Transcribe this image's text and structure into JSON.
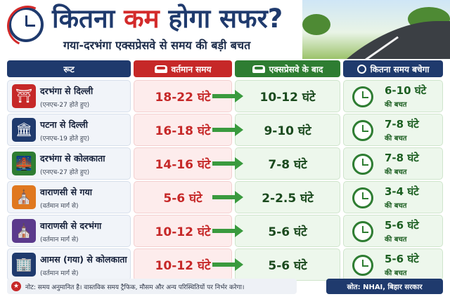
{
  "header": {
    "title_part1": "कितना ",
    "title_highlight": "कम",
    "title_part2": " होगा सफर?",
    "subtitle": "गया-दरभंगा एक्सप्रेसवे से समय की बड़ी बचत"
  },
  "columns": {
    "route": "रूट",
    "current": "वर्तमान समय",
    "expressway": "एक्सप्रेसवे के बाद",
    "saving": "कितना समय बचेगा"
  },
  "rows": [
    {
      "route": "दरभंगा से दिल्ली",
      "via": "(एनएच-27 होते हुए)",
      "icon": "india-gate-icon",
      "icon_color": "#c62828",
      "current": "18-22 घंटे",
      "expressway": "10-12 घंटे",
      "saving": "6-10 घंटे",
      "saving_label": "की बचत"
    },
    {
      "route": "पटना से दिल्ली",
      "via": "(एनएच-19 होते हुए)",
      "icon": "parliament-icon",
      "icon_color": "#1f3a6d",
      "current": "16-18 घंटे",
      "expressway": "9-10 घंटे",
      "saving": "7-8 घंटे",
      "saving_label": "की बचत"
    },
    {
      "route": "दरभंगा से कोलकाता",
      "via": "(एनएच-27 होते हुए)",
      "icon": "bridge-icon",
      "icon_color": "#2e7d32",
      "current": "14-16 घंटे",
      "expressway": "7-8 घंटे",
      "saving": "7-8 घंटे",
      "saving_label": "की बचत"
    },
    {
      "route": "वाराणसी से गया",
      "via": "(वर्तमान मार्ग से)",
      "icon": "temple-icon",
      "icon_color": "#e0781f",
      "current": "5-6 घंटे",
      "expressway": "2-2.5 घंटे",
      "saving": "3-4 घंटे",
      "saving_label": "की बचत"
    },
    {
      "route": "वाराणसी से दरभंगा",
      "via": "(वर्तमान मार्ग से)",
      "icon": "temple-icon",
      "icon_color": "#5b3a8c",
      "current": "10-12 घंटे",
      "expressway": "5-6 घंटे",
      "saving": "5-6 घंटे",
      "saving_label": "की बचत"
    },
    {
      "route": "आमस (गया) से कोलकाता",
      "via": "(वर्तमान मार्ग से)",
      "icon": "clock-tower-icon",
      "icon_color": "#1f3a6d",
      "current": "10-12 घंटे",
      "expressway": "5-6 घंटे",
      "saving": "5-6 घंटे",
      "saving_label": "की बचत"
    }
  ],
  "footer": {
    "note": "नोट: समय अनुमानित है। वास्तविक समय ट्रैफिक, मौसम और अन्य परिस्थितियों पर निर्भर करेगा।",
    "source": "स्रोत: NHAI, बिहार सरकार"
  }
}
